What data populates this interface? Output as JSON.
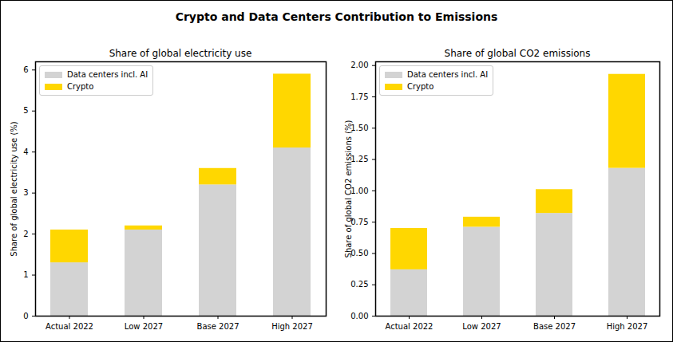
{
  "title": "Crypto and Data Centers Contribution to Emissions",
  "chart_data": [
    {
      "type": "bar",
      "title": "Share of global electricity use",
      "ylabel": "Share of global electricity use (%)",
      "categories": [
        "Actual 2022",
        "Low 2027",
        "Base 2027",
        "High 2027"
      ],
      "series": [
        {
          "name": "Data centers incl. AI",
          "color": "#d3d3d3",
          "values": [
            1.3,
            2.1,
            3.2,
            4.1
          ]
        },
        {
          "name": "Crypto",
          "color": "#ffd700",
          "values": [
            0.8,
            0.1,
            0.4,
            1.8
          ]
        }
      ],
      "stacked": true,
      "legend": "upper left",
      "ylim": [
        0,
        6.2
      ],
      "yticks": [
        0,
        1,
        2,
        3,
        4,
        5,
        6
      ]
    },
    {
      "type": "bar",
      "title": "Share of global CO2 emissions",
      "ylabel": "Share of global CO2 emissions (%)",
      "categories": [
        "Actual 2022",
        "Low 2027",
        "Base 2027",
        "High 2027"
      ],
      "series": [
        {
          "name": "Data centers incl. AI",
          "color": "#d3d3d3",
          "values": [
            0.37,
            0.71,
            0.82,
            1.18
          ]
        },
        {
          "name": "Crypto",
          "color": "#ffd700",
          "values": [
            0.33,
            0.08,
            0.19,
            0.75
          ]
        }
      ],
      "stacked": true,
      "legend": "upper left",
      "ylim": [
        0,
        2.03
      ],
      "yticks": [
        {
          "value": 0,
          "label": "0.00"
        },
        0.25,
        {
          "value": 0.5,
          "label": "0.50"
        },
        0.75,
        {
          "value": 1,
          "label": "1.00"
        },
        1.25,
        {
          "value": 1.5,
          "label": "1.50"
        },
        1.75,
        {
          "value": 2,
          "label": "2.00"
        }
      ]
    }
  ]
}
